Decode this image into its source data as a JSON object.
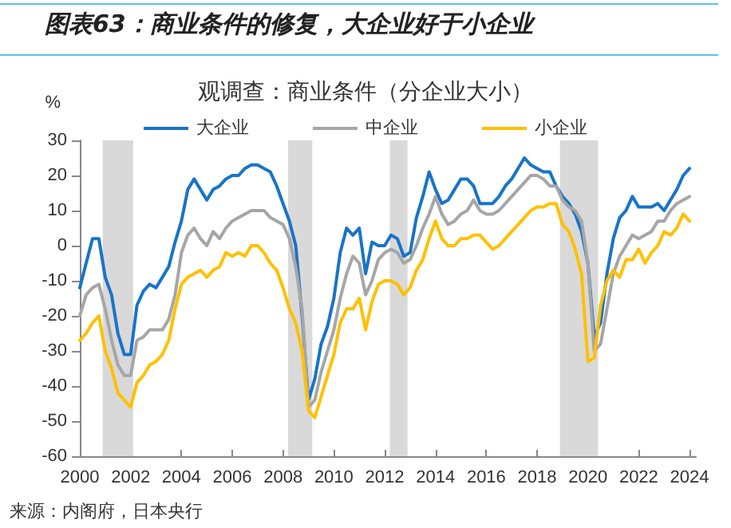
{
  "chart_data": {
    "type": "line",
    "title": "图表63：商业条件的修复，大企业好于小企业",
    "subtitle": "观调查：商业条件（分企业大小）",
    "ylabel": "%",
    "annotations": [
      "来源：内阁府，日本央行"
    ],
    "x": [
      2000,
      2000.25,
      2000.5,
      2000.75,
      2001,
      2001.25,
      2001.5,
      2001.75,
      2002,
      2002.25,
      2002.5,
      2002.75,
      2003,
      2003.25,
      2003.5,
      2003.75,
      2004,
      2004.25,
      2004.5,
      2004.75,
      2005,
      2005.25,
      2005.5,
      2005.75,
      2006,
      2006.25,
      2006.5,
      2006.75,
      2007,
      2007.25,
      2007.5,
      2007.75,
      2008,
      2008.25,
      2008.5,
      2008.75,
      2009,
      2009.25,
      2009.5,
      2009.75,
      2010,
      2010.25,
      2010.5,
      2010.75,
      2011,
      2011.25,
      2011.5,
      2011.75,
      2012,
      2012.25,
      2012.5,
      2012.75,
      2013,
      2013.25,
      2013.5,
      2013.75,
      2014,
      2014.25,
      2014.5,
      2014.75,
      2015,
      2015.25,
      2015.5,
      2015.75,
      2016,
      2016.25,
      2016.5,
      2016.75,
      2017,
      2017.25,
      2017.5,
      2017.75,
      2018,
      2018.25,
      2018.5,
      2018.75,
      2019,
      2019.25,
      2019.5,
      2019.75,
      2020,
      2020.25,
      2020.5,
      2020.75,
      2021,
      2021.25,
      2021.5,
      2021.75,
      2022,
      2022.25,
      2022.5,
      2022.75,
      2023,
      2023.25,
      2023.5,
      2023.75,
      2024
    ],
    "series": [
      {
        "name": "大企业",
        "color": "#1874c9",
        "values": [
          -12,
          -5,
          2,
          2,
          -9,
          -14,
          -25,
          -31,
          -31,
          -17,
          -13,
          -11,
          -12,
          -9,
          -6,
          1,
          7,
          16,
          19,
          16,
          13,
          16,
          17,
          19,
          20,
          20,
          22,
          23,
          23,
          22,
          21,
          17,
          12,
          7,
          0,
          -20,
          -44,
          -38,
          -28,
          -23,
          -15,
          -2,
          5,
          3,
          5,
          -8,
          1,
          0,
          0,
          3,
          2,
          -3,
          -2,
          8,
          14,
          21,
          16,
          12,
          13,
          16,
          19,
          19,
          17,
          12,
          12,
          12,
          14,
          17,
          19,
          22,
          25,
          23,
          22,
          21,
          21,
          17,
          14,
          12,
          9,
          4,
          -5,
          -26,
          -22,
          -8,
          2,
          8,
          10,
          14,
          11,
          11,
          11,
          12,
          10,
          13,
          16,
          20,
          22
        ]
      },
      {
        "name": "中企业",
        "color": "#a6a6a6",
        "values": [
          -20,
          -14,
          -12,
          -11,
          -18,
          -27,
          -34,
          -37,
          -37,
          -27,
          -26,
          -24,
          -24,
          -24,
          -21,
          -14,
          -2,
          3,
          5,
          2,
          0,
          4,
          2,
          5,
          7,
          8,
          9,
          10,
          10,
          10,
          8,
          7,
          6,
          2,
          -6,
          -18,
          -46,
          -44,
          -36,
          -30,
          -24,
          -15,
          -8,
          -3,
          -5,
          -14,
          -10,
          -4,
          -2,
          -1,
          -2,
          -5,
          -4,
          0,
          5,
          9,
          14,
          9,
          6,
          7,
          9,
          10,
          13,
          10,
          9,
          9,
          10,
          12,
          14,
          16,
          18,
          20,
          20,
          19,
          17,
          17,
          13,
          11,
          10,
          7,
          -5,
          -30,
          -28,
          -18,
          -8,
          -3,
          0,
          3,
          2,
          3,
          4,
          7,
          7,
          10,
          12,
          13,
          14
        ]
      },
      {
        "name": "小企业",
        "color": "#ffc000",
        "values": [
          -27,
          -25,
          -22,
          -20,
          -30,
          -35,
          -42,
          -44,
          -46,
          -39,
          -37,
          -34,
          -33,
          -31,
          -27,
          -18,
          -11,
          -9,
          -8,
          -7,
          -9,
          -7,
          -6,
          -2,
          -3,
          -2,
          -3,
          0,
          0,
          -2,
          -5,
          -7,
          -12,
          -18,
          -22,
          -30,
          -47,
          -49,
          -43,
          -37,
          -31,
          -22,
          -18,
          -18,
          -15,
          -24,
          -16,
          -11,
          -10,
          -10,
          -11,
          -14,
          -12,
          -7,
          -4,
          2,
          7,
          2,
          0,
          0,
          2,
          2,
          3,
          3,
          1,
          -1,
          0,
          2,
          4,
          6,
          8,
          10,
          11,
          11,
          12,
          12,
          6,
          4,
          -1,
          -8,
          -33,
          -32,
          -17,
          -10,
          -7,
          -9,
          -4,
          -4,
          -1,
          -5,
          -2,
          0,
          4,
          3,
          5,
          9,
          7
        ]
      }
    ],
    "xlim": [
      2000,
      2024.25
    ],
    "xticks": [
      2000,
      2002,
      2004,
      2006,
      2008,
      2010,
      2012,
      2014,
      2016,
      2018,
      2020,
      2022,
      2024
    ],
    "ylim": [
      -60,
      30
    ],
    "yticks": [
      -60,
      -50,
      -40,
      -30,
      -20,
      -10,
      0,
      10,
      20,
      30
    ],
    "bands": [
      {
        "axis": "x",
        "from": 2000.9,
        "to": 2002.1,
        "color": "#d9d9d9"
      },
      {
        "axis": "x",
        "from": 2008.2,
        "to": 2009.15,
        "color": "#d9d9d9"
      },
      {
        "axis": "x",
        "from": 2012.2,
        "to": 2012.9,
        "color": "#d9d9d9"
      },
      {
        "axis": "x",
        "from": 2018.9,
        "to": 2020.4,
        "color": "#d9d9d9"
      }
    ],
    "legend": "top",
    "grid": false,
    "marker": "none",
    "line_style": "solid"
  }
}
